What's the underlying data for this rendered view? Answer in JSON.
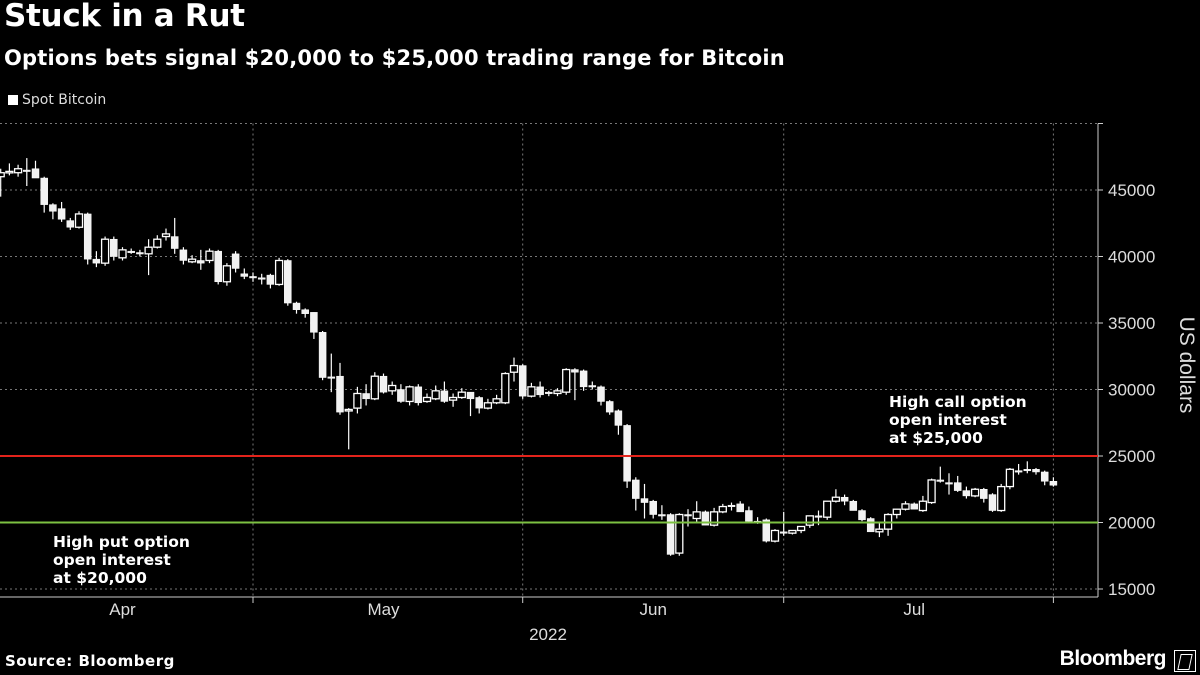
{
  "title": "Stuck in a Rut",
  "subtitle": "Options bets signal $20,000 to $25,000 trading range for Bitcoin",
  "source": "Source: Bloomberg",
  "logo_text": "Bloomberg",
  "colors": {
    "background": "#000000",
    "candles": "#ffffff",
    "call_line": "#e3231b",
    "put_line": "#7dc142",
    "grid": "#777777"
  },
  "chart_data": {
    "type": "candlestick",
    "title": "Stuck in a Rut",
    "legend": [
      {
        "name": "Spot Bitcoin",
        "color": "#ffffff"
      }
    ],
    "legend_position": "top-left",
    "ylabel": "US dollars",
    "xlabel": "2022",
    "ylim": [
      15000,
      50000
    ],
    "yticks": [
      15000,
      20000,
      25000,
      30000,
      35000,
      40000,
      45000
    ],
    "ytick_labels": [
      "15000",
      "20000",
      "25000",
      "30000",
      "35000",
      "40000",
      "45000"
    ],
    "y_axis_side": "right",
    "xtick_labels": [
      "Apr",
      "May",
      "Jun",
      "Jul"
    ],
    "grid": true,
    "reference_lines": [
      {
        "value": 25000,
        "color": "#e3231b",
        "label_lines": [
          "High call option",
          "open interest",
          "at $25,000"
        ]
      },
      {
        "value": 20000,
        "color": "#7dc142",
        "label_lines": [
          "High put option",
          "open interest",
          "at $20,000"
        ]
      }
    ],
    "columns": [
      "date",
      "open",
      "high",
      "low",
      "close"
    ],
    "candles": [
      [
        "2022-04-02",
        46000,
        46600,
        44500,
        46300
      ],
      [
        "2022-04-03",
        46300,
        47000,
        46100,
        46400
      ],
      [
        "2022-04-04",
        46300,
        46900,
        46000,
        46600
      ],
      [
        "2022-04-05",
        46500,
        47400,
        45300,
        46500
      ],
      [
        "2022-04-06",
        46600,
        47200,
        46200,
        45900
      ],
      [
        "2022-04-07",
        45900,
        46000,
        43300,
        43900
      ],
      [
        "2022-04-08",
        43900,
        44000,
        42800,
        43400
      ],
      [
        "2022-04-09",
        43600,
        44100,
        42600,
        42800
      ],
      [
        "2022-04-10",
        42700,
        42900,
        42000,
        42200
      ],
      [
        "2022-04-11",
        42200,
        43400,
        42100,
        43200
      ],
      [
        "2022-04-12",
        43200,
        43300,
        39400,
        39800
      ],
      [
        "2022-04-13",
        39800,
        40400,
        39200,
        39500
      ],
      [
        "2022-04-14",
        39500,
        41500,
        39300,
        41300
      ],
      [
        "2022-04-15",
        41300,
        41500,
        39700,
        40000
      ],
      [
        "2022-04-16",
        39900,
        40700,
        39700,
        40500
      ],
      [
        "2022-04-17",
        40400,
        40600,
        40200,
        40400
      ],
      [
        "2022-04-18",
        40300,
        40500,
        40000,
        40300
      ],
      [
        "2022-04-19",
        40200,
        41300,
        38600,
        40700
      ],
      [
        "2022-04-20",
        40700,
        41600,
        40600,
        41300
      ],
      [
        "2022-04-21",
        41500,
        42100,
        41200,
        41700
      ],
      [
        "2022-04-22",
        41500,
        42900,
        40200,
        40600
      ],
      [
        "2022-04-23",
        40500,
        40700,
        39400,
        39700
      ],
      [
        "2022-04-24",
        39600,
        40100,
        39500,
        39800
      ],
      [
        "2022-04-25",
        39700,
        40500,
        39000,
        39500
      ],
      [
        "2022-04-26",
        39700,
        40600,
        39500,
        40400
      ],
      [
        "2022-04-27",
        40400,
        40500,
        37900,
        38100
      ],
      [
        "2022-04-28",
        38100,
        39500,
        37800,
        39300
      ],
      [
        "2022-04-29",
        40200,
        40400,
        38800,
        39100
      ],
      [
        "2022-04-30",
        38700,
        39100,
        38300,
        38500
      ],
      [
        "2022-05-01",
        38500,
        38800,
        38100,
        38500
      ],
      [
        "2022-05-02",
        38400,
        38700,
        37900,
        38400
      ],
      [
        "2022-05-03",
        38600,
        38700,
        37600,
        37900
      ],
      [
        "2022-05-04",
        37900,
        39900,
        37800,
        39700
      ],
      [
        "2022-05-05",
        39700,
        39800,
        36300,
        36500
      ],
      [
        "2022-05-06",
        36500,
        36600,
        35700,
        36000
      ],
      [
        "2022-05-07",
        36000,
        36100,
        35400,
        35700
      ],
      [
        "2022-05-08",
        35800,
        35800,
        33800,
        34300
      ],
      [
        "2022-05-09",
        34300,
        34400,
        30700,
        30900
      ],
      [
        "2022-05-10",
        30950,
        32700,
        29800,
        30950
      ],
      [
        "2022-05-11",
        31000,
        32000,
        28100,
        28300
      ],
      [
        "2022-05-12",
        28400,
        28600,
        25500,
        28500
      ],
      [
        "2022-05-13",
        28600,
        30200,
        28200,
        29700
      ],
      [
        "2022-05-14",
        29700,
        30400,
        28800,
        29300
      ],
      [
        "2022-05-15",
        29300,
        31300,
        29200,
        31000
      ],
      [
        "2022-05-16",
        31000,
        31200,
        29700,
        29800
      ],
      [
        "2022-05-17",
        29900,
        30600,
        29600,
        30300
      ],
      [
        "2022-05-18",
        30000,
        30400,
        29000,
        29100
      ],
      [
        "2022-05-19",
        29100,
        30300,
        28800,
        30200
      ],
      [
        "2022-05-20",
        30200,
        30400,
        28800,
        29000
      ],
      [
        "2022-05-21",
        29100,
        29700,
        29000,
        29400
      ],
      [
        "2022-05-22",
        29300,
        30300,
        29200,
        29900
      ],
      [
        "2022-05-23",
        29900,
        30600,
        29000,
        29100
      ],
      [
        "2022-05-24",
        29200,
        29700,
        28700,
        29400
      ],
      [
        "2022-05-25",
        29400,
        30100,
        29300,
        29800
      ],
      [
        "2022-05-26",
        29800,
        29800,
        28000,
        29300
      ],
      [
        "2022-05-27",
        29400,
        29500,
        28200,
        28600
      ],
      [
        "2022-05-28",
        28600,
        29300,
        28500,
        29000
      ],
      [
        "2022-05-29",
        29000,
        29600,
        28900,
        29300
      ],
      [
        "2022-05-30",
        29000,
        31300,
        28900,
        31200
      ],
      [
        "2022-05-31",
        31300,
        32400,
        30600,
        31800
      ],
      [
        "2022-06-01",
        31800,
        31900,
        29300,
        29500
      ],
      [
        "2022-06-02",
        29500,
        30500,
        29400,
        30200
      ],
      [
        "2022-06-03",
        30200,
        30600,
        29400,
        29600
      ],
      [
        "2022-06-04",
        29800,
        29900,
        29500,
        29700
      ],
      [
        "2022-06-05",
        29700,
        30100,
        29500,
        29900
      ],
      [
        "2022-06-06",
        29800,
        31600,
        29600,
        31500
      ],
      [
        "2022-06-07",
        31500,
        31600,
        29200,
        31300
      ],
      [
        "2022-06-08",
        31400,
        31500,
        29900,
        30200
      ],
      [
        "2022-06-09",
        30300,
        30600,
        30000,
        30200
      ],
      [
        "2022-06-10",
        30200,
        30300,
        28800,
        29100
      ],
      [
        "2022-06-11",
        29100,
        29200,
        28100,
        28300
      ],
      [
        "2022-06-12",
        28400,
        28500,
        26600,
        27300
      ],
      [
        "2022-06-13",
        27300,
        27400,
        22600,
        23100
      ],
      [
        "2022-06-14",
        23200,
        23400,
        20900,
        21800
      ],
      [
        "2022-06-15",
        21800,
        22900,
        20300,
        21500
      ],
      [
        "2022-06-16",
        21600,
        21700,
        20300,
        20600
      ],
      [
        "2022-06-17",
        20600,
        21300,
        20200,
        20600
      ],
      [
        "2022-06-18",
        20600,
        20700,
        17500,
        17600
      ],
      [
        "2022-06-19",
        17700,
        20700,
        17500,
        20600
      ],
      [
        "2022-06-20",
        20600,
        21000,
        19700,
        20500
      ],
      [
        "2022-06-21",
        20300,
        21600,
        20000,
        20800
      ],
      [
        "2022-06-22",
        20800,
        20900,
        19800,
        19800
      ],
      [
        "2022-06-23",
        19800,
        21100,
        19700,
        20800
      ],
      [
        "2022-06-24",
        20800,
        21400,
        20700,
        21200
      ],
      [
        "2022-06-25",
        21300,
        21500,
        20900,
        21300
      ],
      [
        "2022-06-26",
        21400,
        21600,
        20800,
        20800
      ],
      [
        "2022-06-27",
        20900,
        21200,
        20000,
        20100
      ],
      [
        "2022-06-28",
        20100,
        20400,
        19900,
        20100
      ],
      [
        "2022-06-29",
        20200,
        20300,
        18500,
        18600
      ],
      [
        "2022-06-30",
        18600,
        19500,
        18500,
        19400
      ],
      [
        "2022-07-01",
        19300,
        20800,
        19000,
        19200
      ],
      [
        "2022-07-02",
        19200,
        19400,
        19100,
        19400
      ],
      [
        "2022-07-03",
        19400,
        19700,
        19200,
        19700
      ],
      [
        "2022-07-04",
        19800,
        20500,
        19600,
        20500
      ],
      [
        "2022-07-05",
        20500,
        20900,
        19800,
        20500
      ],
      [
        "2022-07-06",
        20400,
        21600,
        20200,
        21600
      ],
      [
        "2022-07-07",
        21600,
        22500,
        21500,
        21900
      ],
      [
        "2022-07-08",
        21900,
        22100,
        21300,
        21600
      ],
      [
        "2022-07-09",
        21600,
        21700,
        20900,
        20900
      ],
      [
        "2022-07-10",
        20900,
        21000,
        20100,
        20200
      ],
      [
        "2022-07-11",
        20300,
        20400,
        19300,
        19300
      ],
      [
        "2022-07-12",
        19300,
        20000,
        18900,
        19500
      ],
      [
        "2022-07-13",
        19500,
        20700,
        19000,
        20600
      ],
      [
        "2022-07-14",
        20600,
        21000,
        20300,
        21000
      ],
      [
        "2022-07-15",
        21000,
        21600,
        20900,
        21400
      ],
      [
        "2022-07-16",
        21400,
        21500,
        21000,
        21000
      ],
      [
        "2022-07-17",
        20900,
        22000,
        20800,
        21600
      ],
      [
        "2022-07-18",
        21500,
        23300,
        21400,
        23200
      ],
      [
        "2022-07-19",
        23200,
        24200,
        23000,
        23200
      ],
      [
        "2022-07-20",
        23000,
        23700,
        22100,
        23000
      ],
      [
        "2022-07-21",
        23000,
        23500,
        22300,
        22400
      ],
      [
        "2022-07-22",
        22400,
        22700,
        21800,
        22000
      ],
      [
        "2022-07-23",
        22000,
        22600,
        21900,
        22500
      ],
      [
        "2022-07-24",
        22500,
        22600,
        21500,
        21800
      ],
      [
        "2022-07-25",
        22100,
        22200,
        20800,
        20900
      ],
      [
        "2022-07-26",
        20900,
        22900,
        20800,
        22700
      ],
      [
        "2022-07-27",
        22700,
        24100,
        22500,
        24000
      ],
      [
        "2022-07-28",
        23900,
        24400,
        23600,
        23900
      ],
      [
        "2022-07-29",
        24000,
        24600,
        23700,
        24000
      ],
      [
        "2022-07-30",
        24000,
        24100,
        23600,
        23800
      ],
      [
        "2022-07-31",
        23800,
        23900,
        22800,
        23100
      ],
      [
        "2022-08-01",
        23100,
        23400,
        22700,
        22800
      ]
    ]
  }
}
